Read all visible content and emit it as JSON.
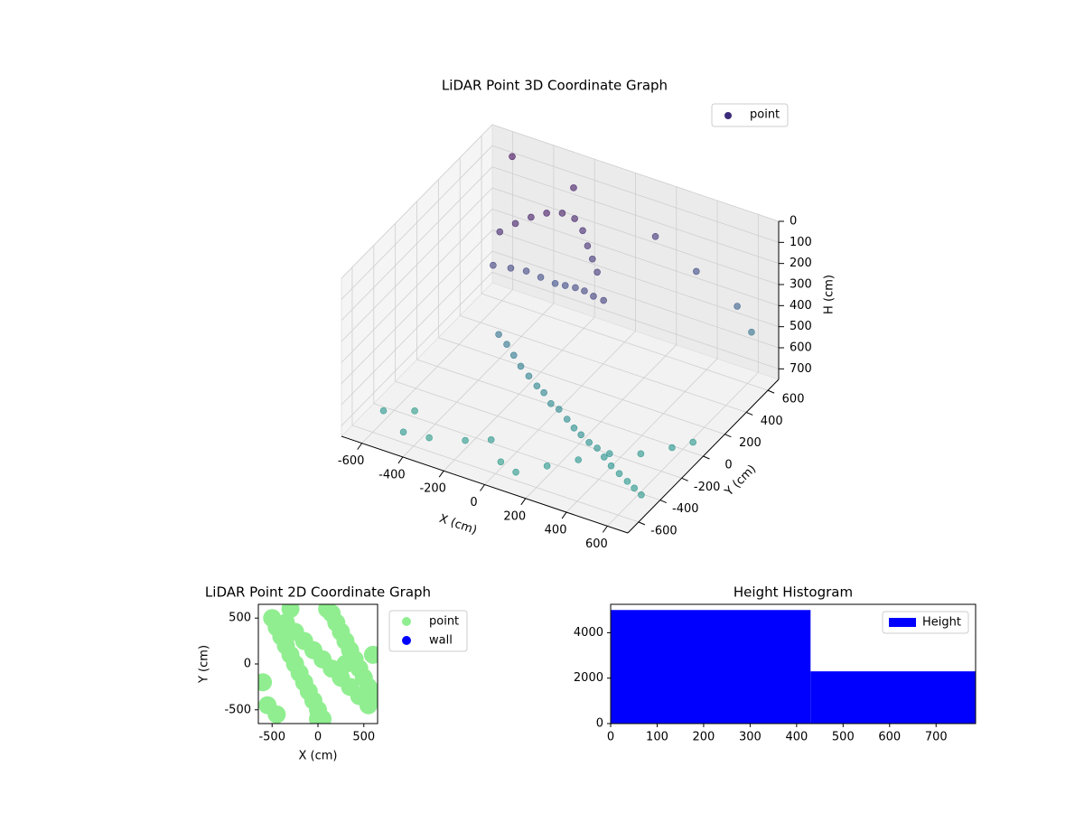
{
  "chart_data": [
    {
      "type": "scatter3d",
      "title": "LiDAR Point 3D Coordinate Graph",
      "x_label": "X (cm)",
      "y_label": "Y (cm)",
      "z_label": "H (cm)",
      "xlim": [
        -700,
        700
      ],
      "ylim": [
        -700,
        700
      ],
      "zlim": [
        0,
        750
      ],
      "xticks": [
        -600,
        -400,
        -200,
        0,
        200,
        400,
        600
      ],
      "yticks": [
        -600,
        -400,
        -200,
        0,
        200,
        400,
        600
      ],
      "zticks": [
        0,
        100,
        200,
        300,
        400,
        500,
        600,
        700
      ],
      "grid": true,
      "legend": "upper right",
      "colormap": "viridis",
      "series": [
        {
          "name": "point",
          "color": "#3d2b7a",
          "x": [
            -400,
            -350,
            -300,
            -250,
            -200,
            -150,
            -100,
            -50,
            0,
            50,
            -380,
            -320,
            -260,
            -200,
            -140,
            -80,
            -20,
            40,
            100,
            160,
            -300,
            -250,
            -200,
            -150,
            -100,
            -50,
            0,
            50,
            100,
            150,
            200,
            250,
            300,
            350,
            400,
            450,
            500,
            550,
            600,
            650,
            -600,
            -500,
            -450,
            -350,
            -200,
            -100,
            0,
            100,
            200,
            300,
            400,
            500,
            600,
            650,
            -550,
            -250,
            150,
            350,
            550,
            620
          ],
          "y": [
            200,
            250,
            300,
            350,
            400,
            420,
            400,
            350,
            300,
            250,
            100,
            150,
            180,
            200,
            220,
            200,
            180,
            150,
            120,
            100,
            0,
            -20,
            -50,
            -80,
            -100,
            -120,
            -150,
            -180,
            -200,
            -220,
            -250,
            -280,
            -300,
            -320,
            -350,
            -380,
            -400,
            -420,
            -450,
            -480,
            -500,
            -400,
            -600,
            -550,
            -500,
            -450,
            -550,
            -600,
            -500,
            -400,
            -300,
            -200,
            -100,
            0,
            600,
            600,
            600,
            600,
            600,
            600
          ],
          "z": [
            150,
            120,
            100,
            90,
            100,
            120,
            150,
            180,
            200,
            220,
            250,
            270,
            280,
            300,
            320,
            300,
            280,
            260,
            250,
            240,
            500,
            520,
            540,
            560,
            580,
            600,
            600,
            620,
            620,
            640,
            650,
            650,
            660,
            660,
            670,
            680,
            690,
            700,
            700,
            700,
            700,
            720,
            700,
            720,
            710,
            700,
            720,
            710,
            700,
            690,
            680,
            700,
            690,
            700,
            50,
            100,
            200,
            300,
            400,
            500
          ]
        }
      ]
    },
    {
      "type": "scatter",
      "title": "LiDAR Point 2D Coordinate Graph",
      "x_label": "X (cm)",
      "y_label": "Y (cm)",
      "xlim": [
        -650,
        650
      ],
      "ylim": [
        -650,
        650
      ],
      "xticks": [
        -500,
        0,
        500
      ],
      "yticks": [
        -500,
        0,
        500
      ],
      "legend": "outside right",
      "series": [
        {
          "name": "point",
          "color": "#90ee90",
          "x": [
            -500,
            -450,
            -400,
            -350,
            -300,
            -250,
            -200,
            -150,
            -100,
            -50,
            0,
            50,
            100,
            150,
            200,
            250,
            300,
            350,
            400,
            450,
            500,
            550,
            600,
            -550,
            -450,
            -350,
            -250,
            -150,
            -50,
            50,
            150,
            250,
            350,
            450,
            550,
            -600,
            -300,
            0,
            300,
            600
          ],
          "y": [
            500,
            400,
            300,
            200,
            100,
            0,
            -100,
            -200,
            -300,
            -400,
            -500,
            -600,
            600,
            550,
            450,
            350,
            250,
            150,
            50,
            -50,
            -150,
            -250,
            -350,
            -450,
            -550,
            450,
            350,
            250,
            150,
            50,
            -50,
            -150,
            -250,
            -350,
            -450,
            -200,
            600,
            -600,
            0,
            100
          ]
        },
        {
          "name": "wall",
          "color": "#0000ff",
          "x": [],
          "y": []
        }
      ]
    },
    {
      "type": "histogram",
      "title": "Height Histogram",
      "bins": [
        0,
        430,
        785
      ],
      "xlim": [
        0,
        785
      ],
      "ylim": [
        0,
        5250
      ],
      "xticks": [
        0,
        100,
        200,
        300,
        400,
        500,
        600,
        700
      ],
      "yticks": [
        0,
        2000,
        4000
      ],
      "legend": "upper right",
      "series": [
        {
          "name": "Height",
          "color": "#0000ff",
          "values": [
            5000,
            2300
          ]
        }
      ]
    }
  ]
}
